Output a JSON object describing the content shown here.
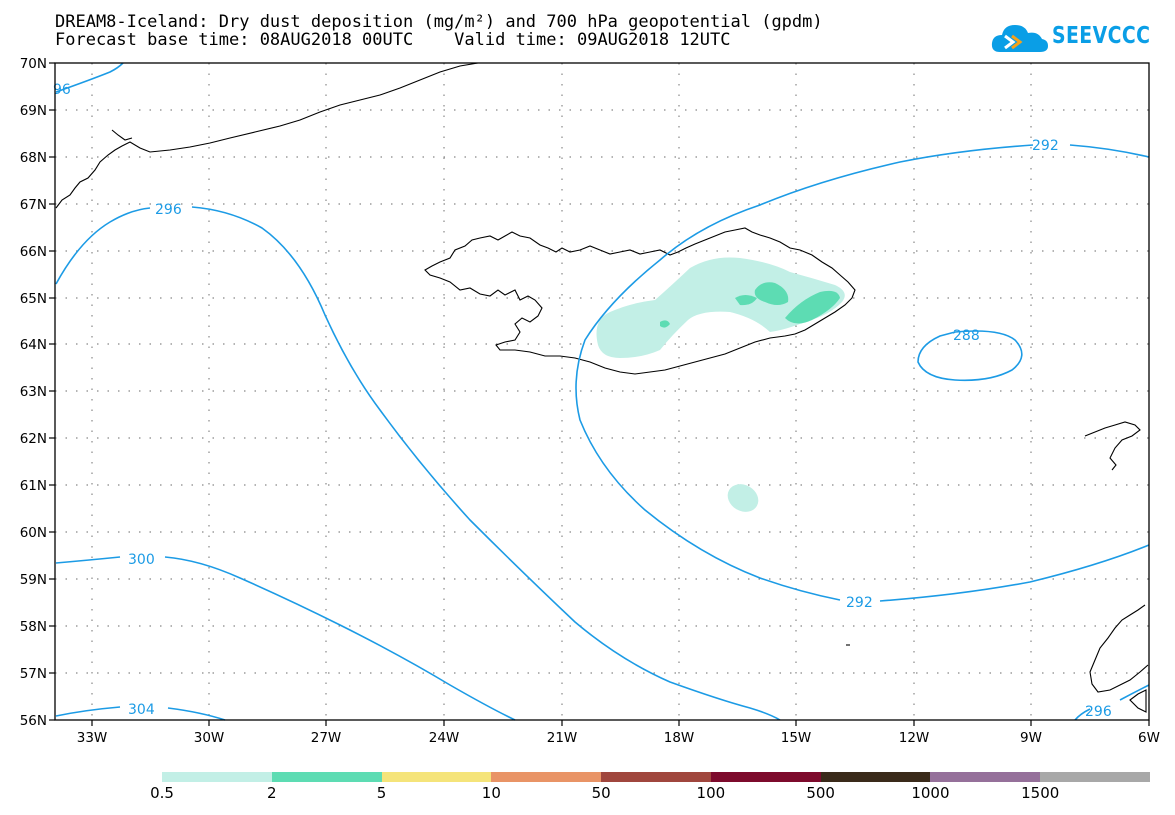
{
  "header": {
    "title_line1": "DREAM8-Iceland: Dry dust deposition (mg/m²) and 700 hPa geopotential (gpdm)",
    "title_line2": "Forecast base time: 08AUG2018 00UTC    Valid time: 09AUG2018 12UTC",
    "logo_text": "SEEVCCC"
  },
  "map": {
    "lat_labels": [
      "70N",
      "69N",
      "68N",
      "67N",
      "66N",
      "65N",
      "64N",
      "63N",
      "62N",
      "61N",
      "60N",
      "59N",
      "58N",
      "57N",
      "56N"
    ],
    "lon_labels": [
      "33W",
      "30W",
      "27W",
      "24W",
      "21W",
      "18W",
      "15W",
      "12W",
      "9W",
      "6W"
    ],
    "contour_labels": {
      "c96": "96",
      "c296_west": "296",
      "c292_north": "292",
      "c288": "288",
      "c292_south": "292",
      "c300": "300",
      "c304": "304",
      "c296_se": "296"
    },
    "colors": {
      "contour": "#1c9be5",
      "coast": "#000000"
    }
  },
  "legend": {
    "colors": [
      "#c2efe6",
      "#5ddcb3",
      "#f5e47a",
      "#e99466",
      "#a0463d",
      "#7d0a2c",
      "#3a2a1a",
      "#95709a",
      "#a8a8a8"
    ],
    "labels": [
      "0.5",
      "2",
      "5",
      "10",
      "50",
      "100",
      "500",
      "1000",
      "1500"
    ]
  }
}
